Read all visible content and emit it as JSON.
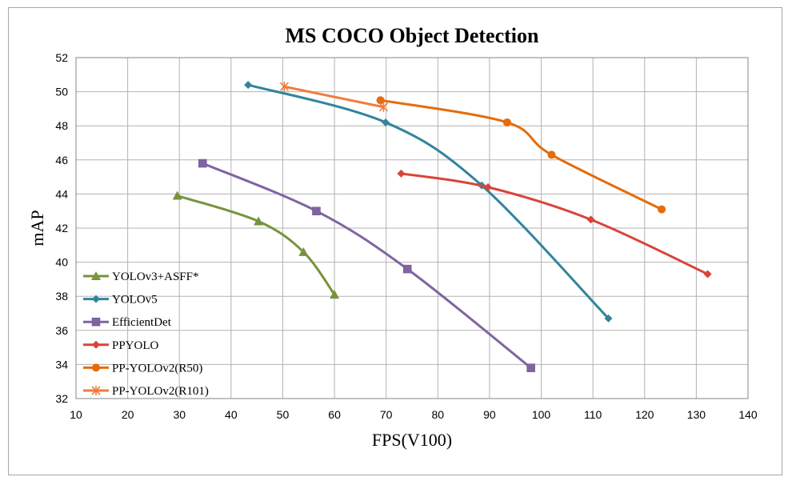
{
  "chart_data": {
    "type": "line",
    "title": "MS COCO Object Detection",
    "xlabel": "FPS(V100)",
    "ylabel": "mAP",
    "xlim": [
      10,
      140
    ],
    "ylim": [
      32,
      52
    ],
    "xticks": [
      10,
      20,
      30,
      40,
      50,
      60,
      70,
      80,
      90,
      100,
      110,
      120,
      130,
      140
    ],
    "yticks": [
      32,
      34,
      36,
      38,
      40,
      42,
      44,
      46,
      48,
      50,
      52
    ],
    "grid": true,
    "legend_position": "bottom-left",
    "series": [
      {
        "name": "YOLOv3+ASFF*",
        "color": "#77933c",
        "marker": "triangle",
        "points": [
          [
            29.6,
            43.9
          ],
          [
            45.3,
            42.4
          ],
          [
            54.0,
            40.6
          ],
          [
            60.0,
            38.1
          ]
        ]
      },
      {
        "name": "YOLOv5",
        "color": "#31849b",
        "marker": "diamond",
        "points": [
          [
            43.3,
            50.4
          ],
          [
            69.9,
            48.2
          ],
          [
            88.5,
            44.5
          ],
          [
            113.0,
            36.7
          ]
        ]
      },
      {
        "name": "EfficientDet",
        "color": "#8064a2",
        "marker": "square",
        "points": [
          [
            34.5,
            45.8
          ],
          [
            56.5,
            43.0
          ],
          [
            74.1,
            39.6
          ],
          [
            98.0,
            33.8
          ]
        ]
      },
      {
        "name": "PPYOLO",
        "color": "#d9443a",
        "marker": "diamond",
        "points": [
          [
            72.9,
            45.2
          ],
          [
            89.7,
            44.4
          ],
          [
            109.6,
            42.5
          ],
          [
            132.2,
            39.3
          ]
        ]
      },
      {
        "name": "PP-YOLOv2(R50)",
        "color": "#e46c0a",
        "marker": "circle",
        "points": [
          [
            68.9,
            49.5
          ],
          [
            93.4,
            48.2
          ],
          [
            102.0,
            46.3
          ],
          [
            123.3,
            43.1
          ]
        ]
      },
      {
        "name": "PP-YOLOv2(R101)",
        "color": "#f07c41",
        "marker": "star",
        "points": [
          [
            50.3,
            50.3
          ],
          [
            69.5,
            49.1
          ]
        ]
      }
    ]
  }
}
